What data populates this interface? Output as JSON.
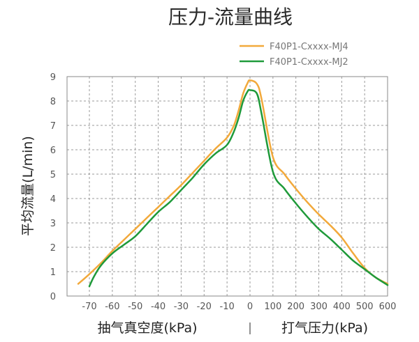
{
  "chart_data": {
    "type": "line",
    "title": "压力-流量曲线",
    "ylabel": "平均流量(L/min)",
    "xlabel_left": "抽气真空度(kPa)",
    "xlabel_sep": "|",
    "xlabel_right": "打气压力(kPa)",
    "ylim": [
      0,
      9
    ],
    "yticks": [
      "0",
      "1",
      "2",
      "3",
      "4",
      "5",
      "6",
      "7",
      "8",
      "9"
    ],
    "xticks": [
      "-70",
      "-60",
      "-50",
      "-40",
      "-30",
      "-20",
      "-10",
      "0",
      "100",
      "200",
      "300",
      "400",
      "500",
      "600"
    ],
    "legend_position": "top-right",
    "series": [
      {
        "name": "F40P1-Cxxxx-MJ4",
        "color": "#f2a93b",
        "x": [
          "-75",
          "-70",
          "-65",
          "-60",
          "-55",
          "-50",
          "-45",
          "-40",
          "-35",
          "-30",
          "-25",
          "-20",
          "-15",
          "-10",
          "-7",
          "-5",
          "-3",
          "-1",
          "0",
          "30",
          "50",
          "100",
          "150",
          "200",
          "250",
          "300",
          "350",
          "400",
          "450",
          "500",
          "550",
          "600"
        ],
        "y": [
          0.5,
          0.9,
          1.35,
          1.85,
          2.3,
          2.75,
          3.2,
          3.65,
          4.1,
          4.55,
          5.05,
          5.55,
          6.05,
          6.5,
          7.0,
          7.6,
          8.3,
          8.75,
          8.85,
          8.7,
          8.1,
          5.7,
          5.0,
          4.4,
          3.85,
          3.35,
          2.9,
          2.4,
          1.75,
          1.15,
          0.75,
          0.5
        ]
      },
      {
        "name": "F40P1-Cxxxx-MJ2",
        "color": "#1f9a3a",
        "x": [
          "-70",
          "-68",
          "-65",
          "-60",
          "-55",
          "-50",
          "-45",
          "-40",
          "-35",
          "-30",
          "-25",
          "-20",
          "-15",
          "-10",
          "-7",
          "-5",
          "-3",
          "-1",
          "0",
          "30",
          "50",
          "100",
          "150",
          "200",
          "250",
          "300",
          "350",
          "400",
          "450",
          "500",
          "550",
          "600"
        ],
        "y": [
          0.4,
          0.8,
          1.25,
          1.75,
          2.1,
          2.45,
          2.95,
          3.45,
          3.85,
          4.35,
          4.85,
          5.4,
          5.85,
          6.2,
          6.75,
          7.3,
          8.0,
          8.4,
          8.45,
          8.3,
          7.5,
          5.1,
          4.4,
          3.8,
          3.25,
          2.75,
          2.35,
          1.9,
          1.45,
          1.1,
          0.75,
          0.45
        ]
      }
    ]
  }
}
